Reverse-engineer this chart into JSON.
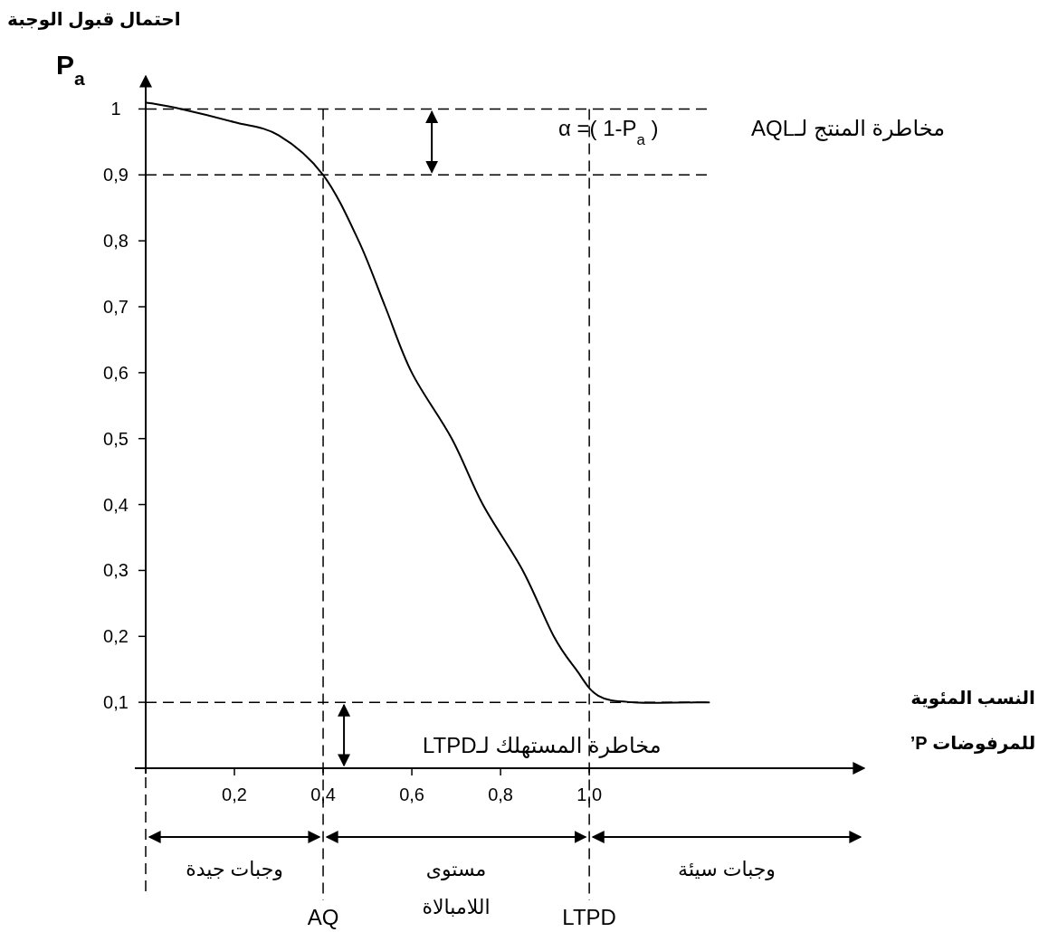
{
  "chart_data": {
    "type": "line",
    "ylabel": "احتمال قبول الوجبة",
    "xlabel": "النسب المئوية\nللمرفوضات P’",
    "series": [
      {
        "type": "line",
        "color": "#000000",
        "x": [
          0,
          0.08,
          0.2,
          0.3,
          0.4,
          0.48,
          0.54,
          0.6,
          0.69,
          0.76,
          0.85,
          0.92,
          0.97,
          1.02,
          1.1,
          1.27
        ],
        "values": [
          1.01,
          1.0,
          0.98,
          0.96,
          0.9,
          0.8,
          0.7,
          0.6,
          0.5,
          0.4,
          0.3,
          0.2,
          0.15,
          0.11,
          0.1,
          0.1
        ]
      }
    ],
    "xlim": [
      0,
      1.62
    ],
    "ylim": [
      0,
      1.05
    ],
    "xticks": [
      {
        "value": 0.2,
        "label": "0,2"
      },
      {
        "value": 0.4,
        "label": "0,4"
      },
      {
        "value": 0.6,
        "label": "0,6"
      },
      {
        "value": 0.8,
        "label": "0,8"
      },
      {
        "value": 1.0,
        "label": "1,0"
      }
    ],
    "yticks": [
      {
        "value": 0.1,
        "label": "0,1"
      },
      {
        "value": 0.2,
        "label": "0,2"
      },
      {
        "value": 0.3,
        "label": "0,3"
      },
      {
        "value": 0.4,
        "label": "0,4"
      },
      {
        "value": 0.5,
        "label": "0,5"
      },
      {
        "value": 0.6,
        "label": "0,6"
      },
      {
        "value": 0.7,
        "label": "0,7"
      },
      {
        "value": 0.8,
        "label": "0,8"
      },
      {
        "value": 0.9,
        "label": "0,9"
      },
      {
        "value": 1,
        "label": "1"
      }
    ],
    "ref_lines": [
      {
        "axis": "y",
        "value": 1,
        "line_style": "dashed"
      },
      {
        "axis": "y",
        "value": 0.9,
        "line_style": "dashed"
      },
      {
        "axis": "y",
        "value": 0.1,
        "line_style": "dashed"
      },
      {
        "axis": "x",
        "value": 0.4,
        "label": "AQ",
        "line_style": "dashed"
      },
      {
        "axis": "x",
        "value": 1.0,
        "label": "LTPD",
        "line_style": "dashed"
      }
    ],
    "annotations": [
      "P$_{a}$",
      "مخاطرة المنتج لـAQL",
      "α =( 1-P$_{a}$ )",
      "مخاطرة المستهلك لـLTPD",
      "وجبات جيدة",
      "مستوى\nاللامبالاة",
      "وجبات سيئة"
    ],
    "grid": false,
    "marker": "none",
    "line_style": "solid"
  }
}
